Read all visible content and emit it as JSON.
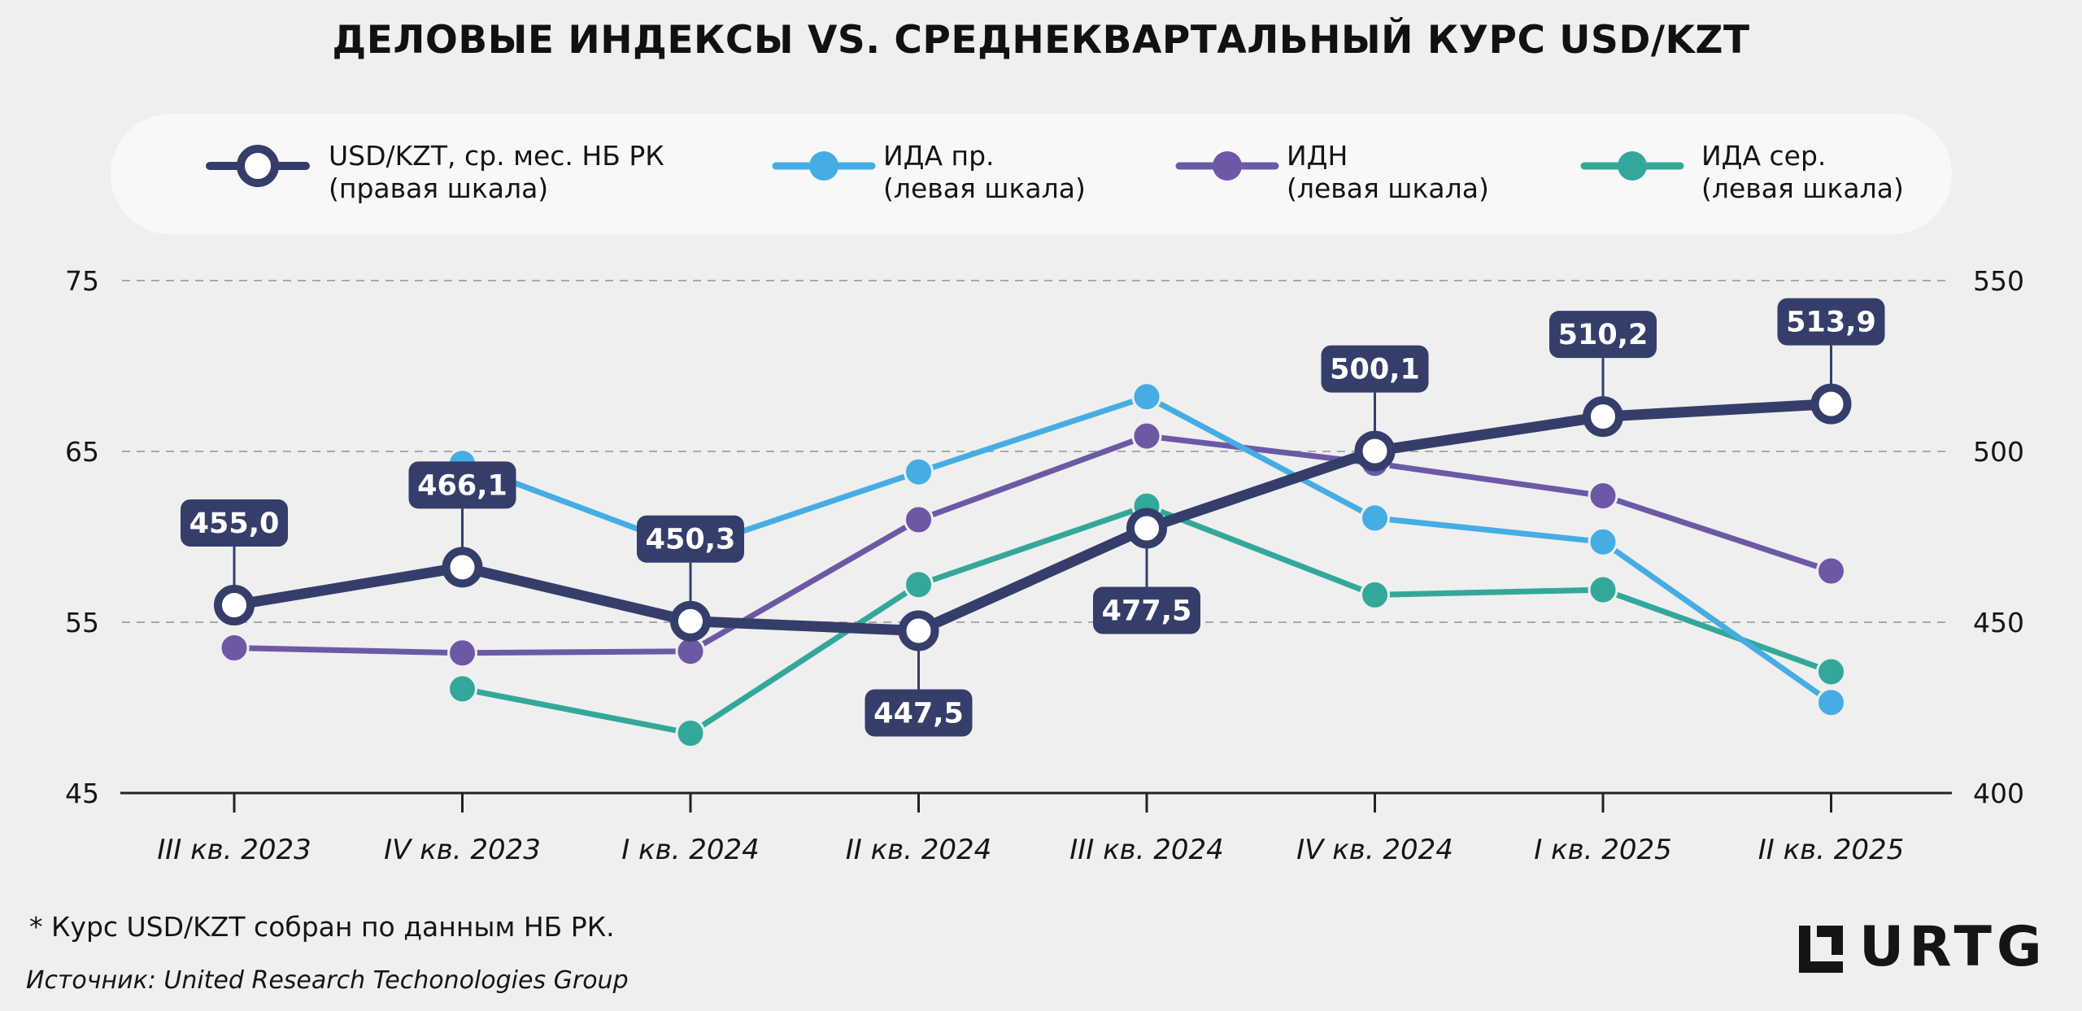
{
  "colors": {
    "usd": "#353e6a",
    "ida_pr": "#45ade3",
    "idn": "#6d58a6",
    "ida_ser": "#33a89a",
    "grid": "#a9a9a9",
    "background": "#efefef"
  },
  "legend": [
    {
      "line1": "USD/KZT, ср. мес. НБ РК",
      "line2": "(правая шкала)"
    },
    {
      "line1": "ИДА пр.",
      "line2": "(левая шкала)"
    },
    {
      "line1": "ИДН",
      "line2": "(левая шкала)"
    },
    {
      "line1": "ИДА сер.",
      "line2": "(левая шкала)"
    }
  ],
  "footnote": "* Курс USD/KZT собран по данным НБ РК.",
  "source": "Источник: United Research Techonologies Group",
  "logo": "URTG",
  "chart_data": {
    "type": "line",
    "title": "ДЕЛОВЫЕ ИНДЕКСЫ VS. СРЕДНЕКВАРТАЛЬНЫЙ КУРС USD/KZT",
    "categories": [
      "III кв. 2023",
      "IV кв. 2023",
      "I кв. 2024",
      "II кв. 2024",
      "III кв. 2024",
      "IV кв. 2024",
      "I кв. 2025",
      "II кв. 2025"
    ],
    "y_left": {
      "min": 45,
      "max": 75,
      "ticks": [
        "45",
        "55",
        "65",
        "75"
      ]
    },
    "y_right": {
      "min": 400,
      "max": 550,
      "ticks": [
        "400",
        "450",
        "500",
        "550"
      ]
    },
    "grid": true,
    "legend_position": "top",
    "series": [
      {
        "key": "usd",
        "name": "USD/KZT, ср. мес. НБ РК",
        "axis": "right",
        "values": [
          455.0,
          466.1,
          450.3,
          447.5,
          477.5,
          500.1,
          510.2,
          513.9
        ],
        "labels": [
          "455,0",
          "466,1",
          "450,3",
          "447,5",
          "477,5",
          "500,1",
          "510,2",
          "513,9"
        ],
        "label_pos": [
          "above",
          "above",
          "above",
          "below",
          "below",
          "above",
          "above",
          "above"
        ]
      },
      {
        "key": "ida_pr",
        "name": "ИДА пр.",
        "axis": "left",
        "values": [
          null,
          64.3,
          59.3,
          63.8,
          68.2,
          61.1,
          59.7,
          50.3
        ]
      },
      {
        "key": "idn",
        "name": "ИДН",
        "axis": "left",
        "values": [
          53.5,
          53.2,
          53.3,
          61.0,
          65.9,
          64.3,
          62.4,
          58.0
        ]
      },
      {
        "key": "ida_ser",
        "name": "ИДА сер.",
        "axis": "left",
        "values": [
          null,
          51.1,
          48.5,
          57.2,
          61.8,
          56.6,
          56.9,
          52.1
        ]
      }
    ]
  }
}
